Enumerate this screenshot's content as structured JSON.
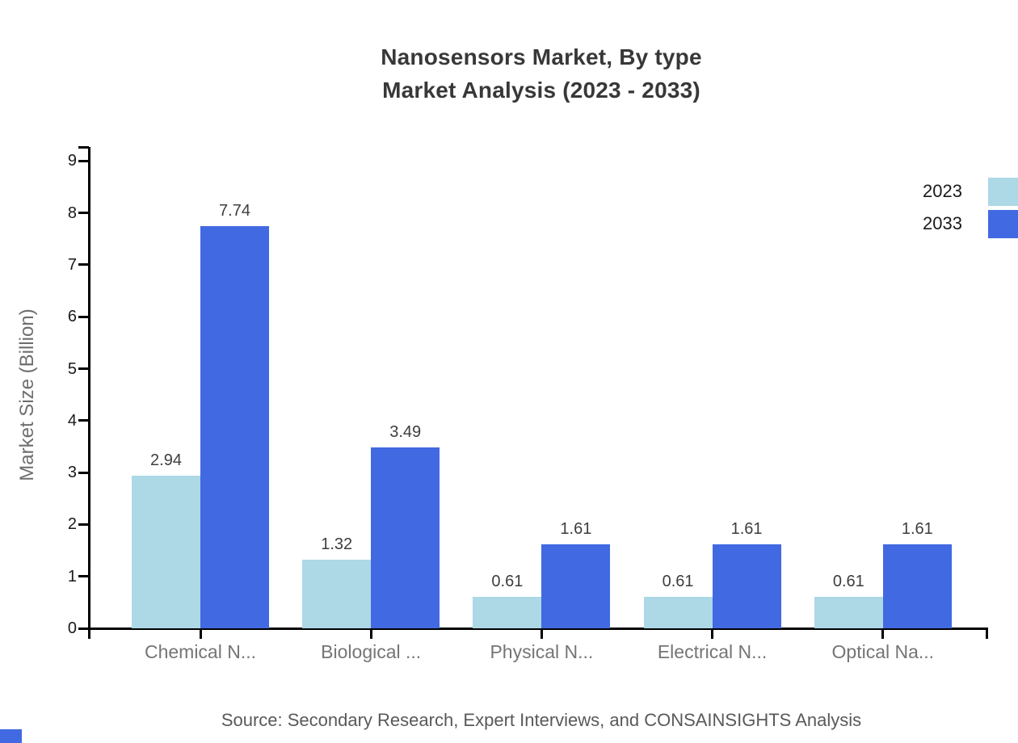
{
  "title": {
    "line1": "Nanosensors Market, By type",
    "line2": "Market Analysis (2023 - 2033)"
  },
  "source": "Source: Secondary Research, Expert Interviews, and CONSAINSIGHTS Analysis",
  "chart_data": {
    "type": "bar",
    "title": "Nanosensors Market, By type — Market Analysis (2023 - 2033)",
    "categories": [
      "Chemical N...",
      "Biological ...",
      "Physical N...",
      "Electrical N...",
      "Optical Na..."
    ],
    "series": [
      {
        "name": "2023",
        "color": "#ADD8E6",
        "values": [
          2.94,
          1.32,
          0.61,
          0.61,
          0.61
        ]
      },
      {
        "name": "2033",
        "color": "#4169E1",
        "values": [
          7.74,
          3.49,
          1.61,
          1.61,
          1.61
        ]
      }
    ],
    "xlabel": "",
    "ylabel": "Market Size (Billion)",
    "ylim": [
      0,
      9
    ],
    "yticks": [
      0,
      1,
      2,
      3,
      4,
      5,
      6,
      7,
      8,
      9
    ],
    "grid": false,
    "value_labels": true,
    "value_label_format": "0.00",
    "legend_position": "top-right",
    "axis_color": "#000000"
  },
  "legend": {
    "items": [
      {
        "label": "2023",
        "color": "#ADD8E6"
      },
      {
        "label": "2033",
        "color": "#4169E1"
      }
    ]
  },
  "brand_color": "#4169E1"
}
